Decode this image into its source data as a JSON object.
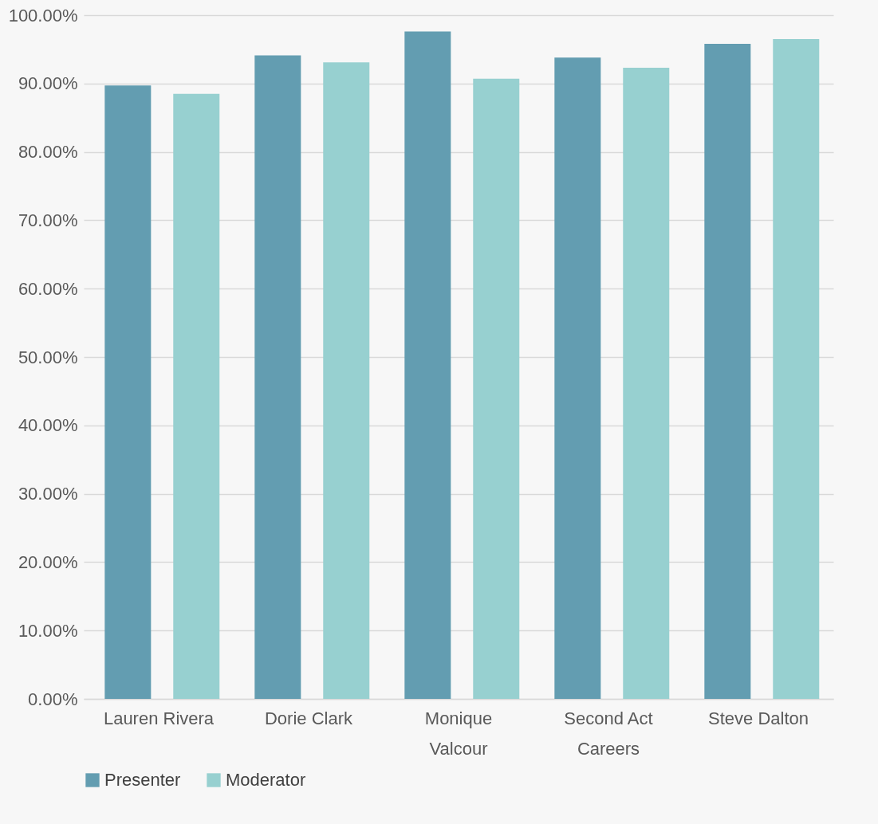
{
  "chart_data": {
    "type": "bar",
    "categories": [
      "Lauren Rivera",
      "Dorie Clark",
      "Monique Valcour",
      "Second Act Careers",
      "Steve Dalton"
    ],
    "series": [
      {
        "name": "Presenter",
        "color": "#639db1",
        "values": [
          89.7,
          94.1,
          97.6,
          93.8,
          95.8
        ]
      },
      {
        "name": "Moderator",
        "color": "#97d0d0",
        "values": [
          88.5,
          93.1,
          90.7,
          92.3,
          96.5
        ]
      }
    ],
    "ylim": [
      0,
      100
    ],
    "yticks": [
      {
        "value": 0,
        "label": "0.00%"
      },
      {
        "value": 10,
        "label": "10.00%"
      },
      {
        "value": 20,
        "label": "20.00%"
      },
      {
        "value": 30,
        "label": "30.00%"
      },
      {
        "value": 40,
        "label": "40.00%"
      },
      {
        "value": 50,
        "label": "50.00%"
      },
      {
        "value": 60,
        "label": "60.00%"
      },
      {
        "value": 70,
        "label": "70.00%"
      },
      {
        "value": 80,
        "label": "80.00%"
      },
      {
        "value": 90,
        "label": "90.00%"
      },
      {
        "value": 100,
        "label": "100.00%"
      }
    ],
    "grid": "y",
    "legend": "bottom"
  }
}
